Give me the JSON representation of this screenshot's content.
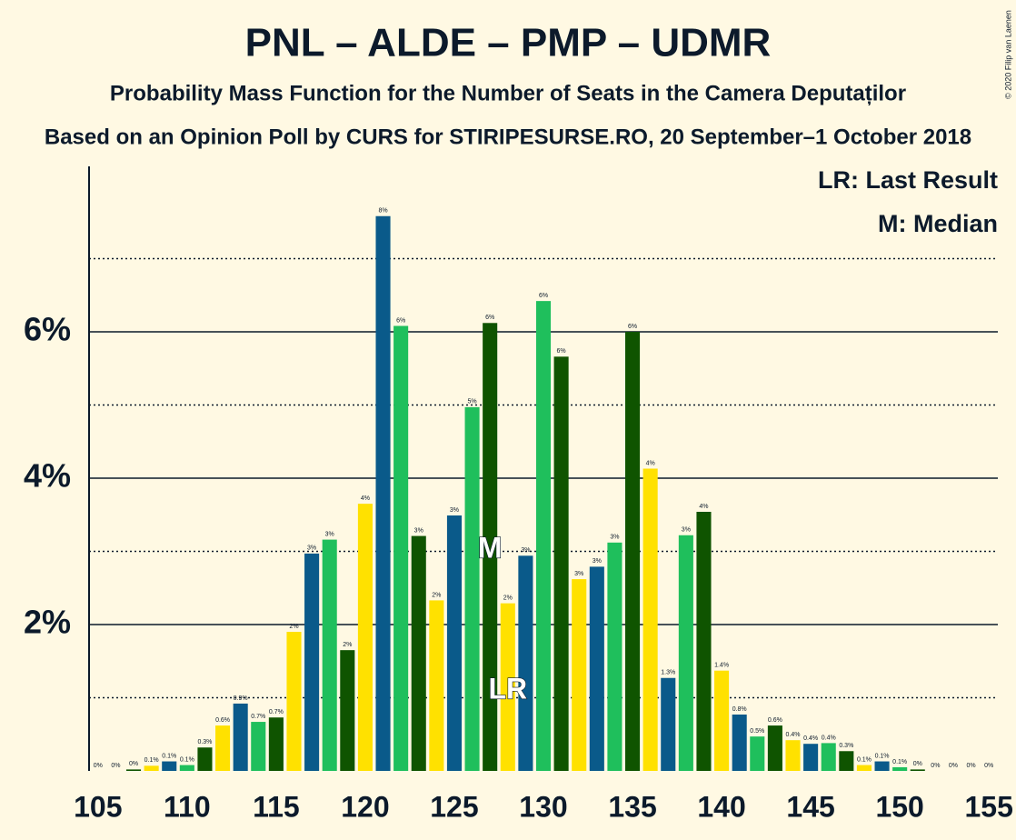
{
  "chart_data": {
    "type": "bar",
    "title": "PNL – ALDE – PMP – UDMR",
    "subtitle": "Probability Mass Function for the Number of Seats in the Camera Deputaților",
    "caption": "Based on an Opinion Poll by CURS for STIRIPESURSE.RO, 20 September–1 October 2018",
    "legend_notes": [
      "LR: Last Result",
      "M: Median"
    ],
    "copyright": "© 2020 Filip van Laenen",
    "x": [
      105,
      106,
      107,
      108,
      109,
      110,
      111,
      112,
      113,
      114,
      115,
      116,
      117,
      118,
      119,
      120,
      121,
      122,
      123,
      124,
      125,
      126,
      127,
      128,
      129,
      130,
      131,
      132,
      133,
      134,
      135,
      136,
      137,
      138,
      139,
      140,
      141,
      142,
      143,
      144,
      145,
      146,
      147,
      148,
      149,
      150,
      151,
      152,
      153,
      154,
      155
    ],
    "values": [
      0,
      0,
      0.02,
      0.07,
      0.13,
      0.08,
      0.32,
      0.62,
      0.92,
      0.67,
      0.73,
      1.9,
      2.97,
      3.16,
      1.65,
      3.65,
      7.58,
      6.08,
      3.21,
      2.33,
      3.49,
      4.97,
      6.12,
      2.29,
      2.94,
      6.42,
      5.66,
      2.62,
      2.79,
      3.12,
      6.0,
      4.13,
      1.27,
      3.22,
      3.54,
      1.37,
      0.77,
      0.47,
      0.62,
      0.42,
      0.37,
      0.38,
      0.27,
      0.08,
      0.13,
      0.05,
      0.02,
      0,
      0,
      0,
      0
    ],
    "value_labels": [
      "0%",
      "0%",
      "0%",
      "0.1%",
      "0.1%",
      "0.1%",
      "0.3%",
      "0.6%",
      "0.9%",
      "0.7%",
      "0.7%",
      "2%",
      "3%",
      "3%",
      "2%",
      "4%",
      "8%",
      "6%",
      "3%",
      "2%",
      "3%",
      "5%",
      "6%",
      "2%",
      "3%",
      "6%",
      "6%",
      "3%",
      "3%",
      "3%",
      "6%",
      "4%",
      "1.3%",
      "3%",
      "4%",
      "1.4%",
      "0.8%",
      "0.5%",
      "0.6%",
      "0.4%",
      "0.4%",
      "0.4%",
      "0.3%",
      "0.1%",
      "0.1%",
      "0.1%",
      "0%",
      "0%",
      "0%",
      "0%",
      "0%"
    ],
    "colors": [
      "#0a5a8a",
      "#1fbf5c",
      "#0f5400",
      "#ffe100"
    ],
    "annotations": [
      {
        "text": "M",
        "x": 127
      },
      {
        "text": "LR",
        "x": 128
      }
    ],
    "xlim": [
      104.5,
      155.5
    ],
    "xticks": [
      105,
      110,
      115,
      120,
      125,
      130,
      135,
      140,
      145,
      150,
      155
    ],
    "ylim": [
      0,
      8.26
    ],
    "yticks": [
      {
        "value": 2,
        "label": "2%"
      },
      {
        "value": 4,
        "label": "4%"
      },
      {
        "value": 6,
        "label": "6%"
      }
    ],
    "minor_yticks": [
      1,
      3,
      5,
      7
    ],
    "grid": true
  }
}
